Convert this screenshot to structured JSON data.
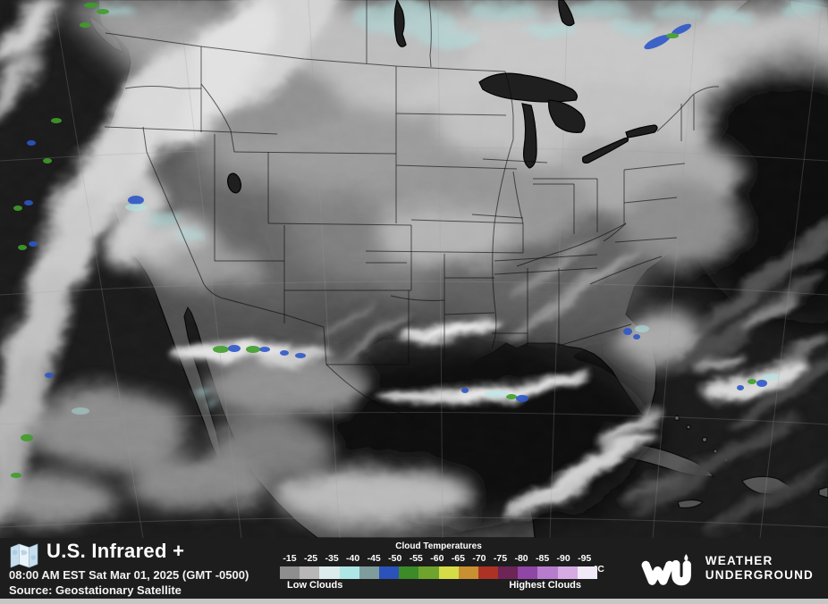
{
  "header": {
    "title": "U.S. Infrared +",
    "timestamp": "08:00 AM EST Sat Mar 01, 2025 (GMT -0500)",
    "source": "Source: Geostationary Satellite",
    "map_icon": "folded-map-icon"
  },
  "legend": {
    "title": "Cloud Temperatures",
    "unit": "°C",
    "ticks": [
      "-15",
      "-25",
      "-35",
      "-40",
      "-45",
      "-50",
      "-55",
      "-60",
      "-65",
      "-70",
      "-75",
      "-80",
      "-85",
      "-90",
      "-95"
    ],
    "swatches": [
      "#8e8e8e",
      "#b7b7b7",
      "#dcebeb",
      "#aee6e6",
      "#7f9c9c",
      "#2b51ba",
      "#3c8a28",
      "#6ea42e",
      "#d6dc46",
      "#c89030",
      "#ac3226",
      "#6d2456",
      "#8f46a4",
      "#b87cce",
      "#d6abe4",
      "#f2e9f6"
    ],
    "low_label": "Low Clouds",
    "high_label": "Highest Clouds"
  },
  "brand": {
    "logo": "wu-logo",
    "line1": "WEATHER",
    "line2": "UNDERGROUND"
  },
  "map": {
    "description": "U.S. infrared satellite image",
    "colors": {
      "ocean": "#161616",
      "land": "#4e4e4e",
      "cloud_bright": "#d8d8d8",
      "cold_top_cyan": "#aee6e6",
      "cold_top_green": "#3f9e2a",
      "cold_top_blue": "#2e57c8"
    }
  },
  "colors": {
    "bar_bg": "#1d1d1d",
    "text": "#ffffff",
    "bottom_strip": "#c6c6c6"
  }
}
